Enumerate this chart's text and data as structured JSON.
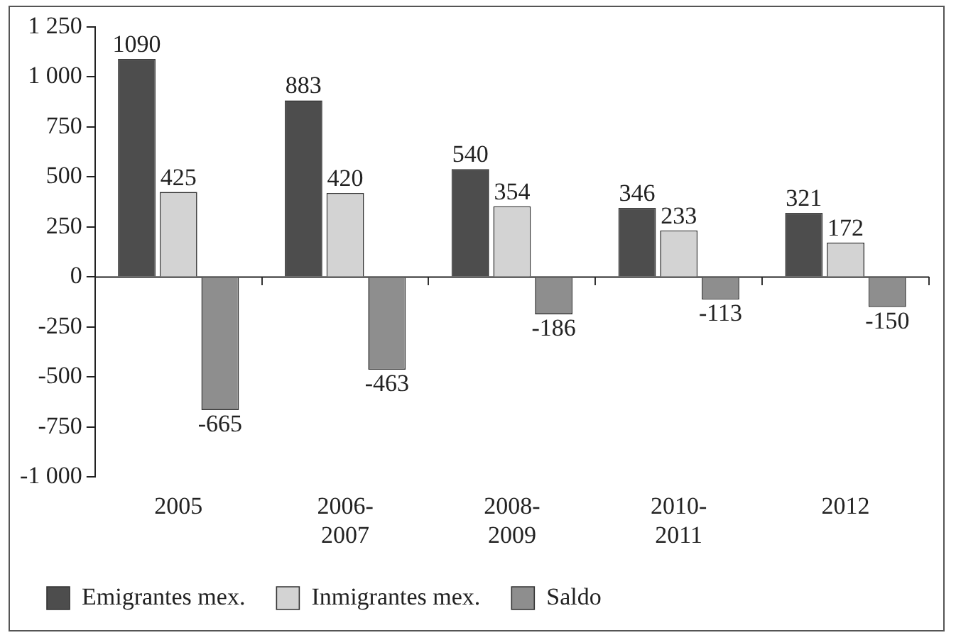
{
  "chart_data": {
    "type": "bar",
    "categories": [
      "2005",
      "2006-2007",
      "2008-2009",
      "2010-2011",
      "2012"
    ],
    "series": [
      {
        "name": "Emigrantes mex.",
        "color": "#4d4d4d",
        "values": [
          1090,
          883,
          540,
          346,
          321
        ]
      },
      {
        "name": "Inmigrantes mex.",
        "color": "#d3d3d3",
        "values": [
          425,
          420,
          354,
          233,
          172
        ]
      },
      {
        "name": "Saldo",
        "color": "#8e8e8e",
        "values": [
          -665,
          -463,
          -186,
          -113,
          -150
        ]
      }
    ],
    "ylim": [
      -1000,
      1250
    ],
    "yticks": [
      {
        "value": -1000,
        "label": "-1 000"
      },
      -750,
      -500,
      -250,
      0,
      250,
      500,
      750,
      {
        "value": 1000,
        "label": "1 000"
      },
      {
        "value": 1250,
        "label": "1 250"
      }
    ],
    "ref_lines": [
      {
        "axis": "y",
        "value": 0,
        "color": "#222222"
      }
    ],
    "data_labels": true,
    "legend": "bottom",
    "grid": false
  }
}
